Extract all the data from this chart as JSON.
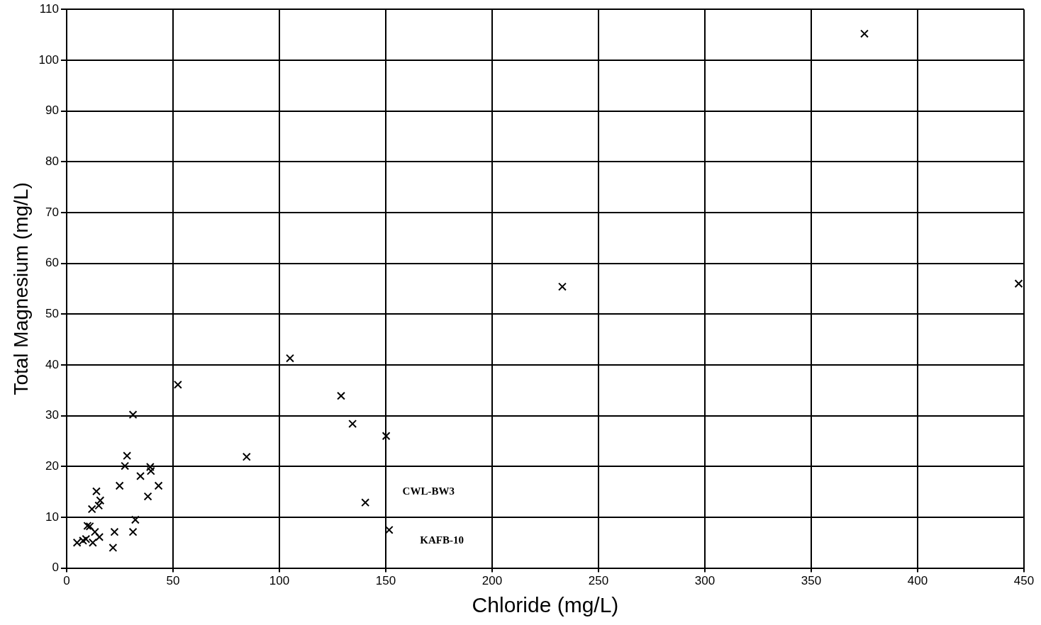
{
  "chart_data": {
    "type": "scatter",
    "xlabel": "Chloride (mg/L)",
    "ylabel": "Total Magnesium (mg/L)",
    "xlim": [
      0,
      450
    ],
    "xticks": [
      0,
      50,
      100,
      150,
      200,
      250,
      300,
      350,
      400,
      450
    ],
    "ylim": [
      0,
      110
    ],
    "yticks": [
      0,
      10,
      20,
      30,
      40,
      50,
      60,
      70,
      80,
      90,
      100,
      110
    ],
    "grid": true,
    "marker": "cross",
    "series": [
      {
        "color": "#000000",
        "x": [
          52.3,
          31.2,
          28.4,
          27.4,
          39.3,
          39.6,
          84.6,
          34.7,
          24.9,
          43.2,
          38.2,
          14.0,
          15.8,
          15.1,
          11.9,
          32.3,
          9.8,
          10.9,
          13.3,
          22.5,
          31.2,
          15.4,
          9.1,
          7.7,
          4.9,
          12.3,
          21.8,
          105,
          129,
          134.4,
          150.2,
          140.4,
          151.6,
          233,
          375,
          447.5
        ],
        "values": [
          36.1,
          30.2,
          22.1,
          20.1,
          19.9,
          19.1,
          21.9,
          18.1,
          16.2,
          16.2,
          14.1,
          15.1,
          13.3,
          12.3,
          11.6,
          9.5,
          8.3,
          8.2,
          7.1,
          7.1,
          7.1,
          6.1,
          5.7,
          5.4,
          5.0,
          5.0,
          4.0,
          41.3,
          33.9,
          28.4,
          26.0,
          12.9,
          7.5,
          55.4,
          105.2,
          56.0
        ]
      }
    ],
    "annotations": [
      "CWL-BW3",
      "KAFB-10"
    ]
  }
}
